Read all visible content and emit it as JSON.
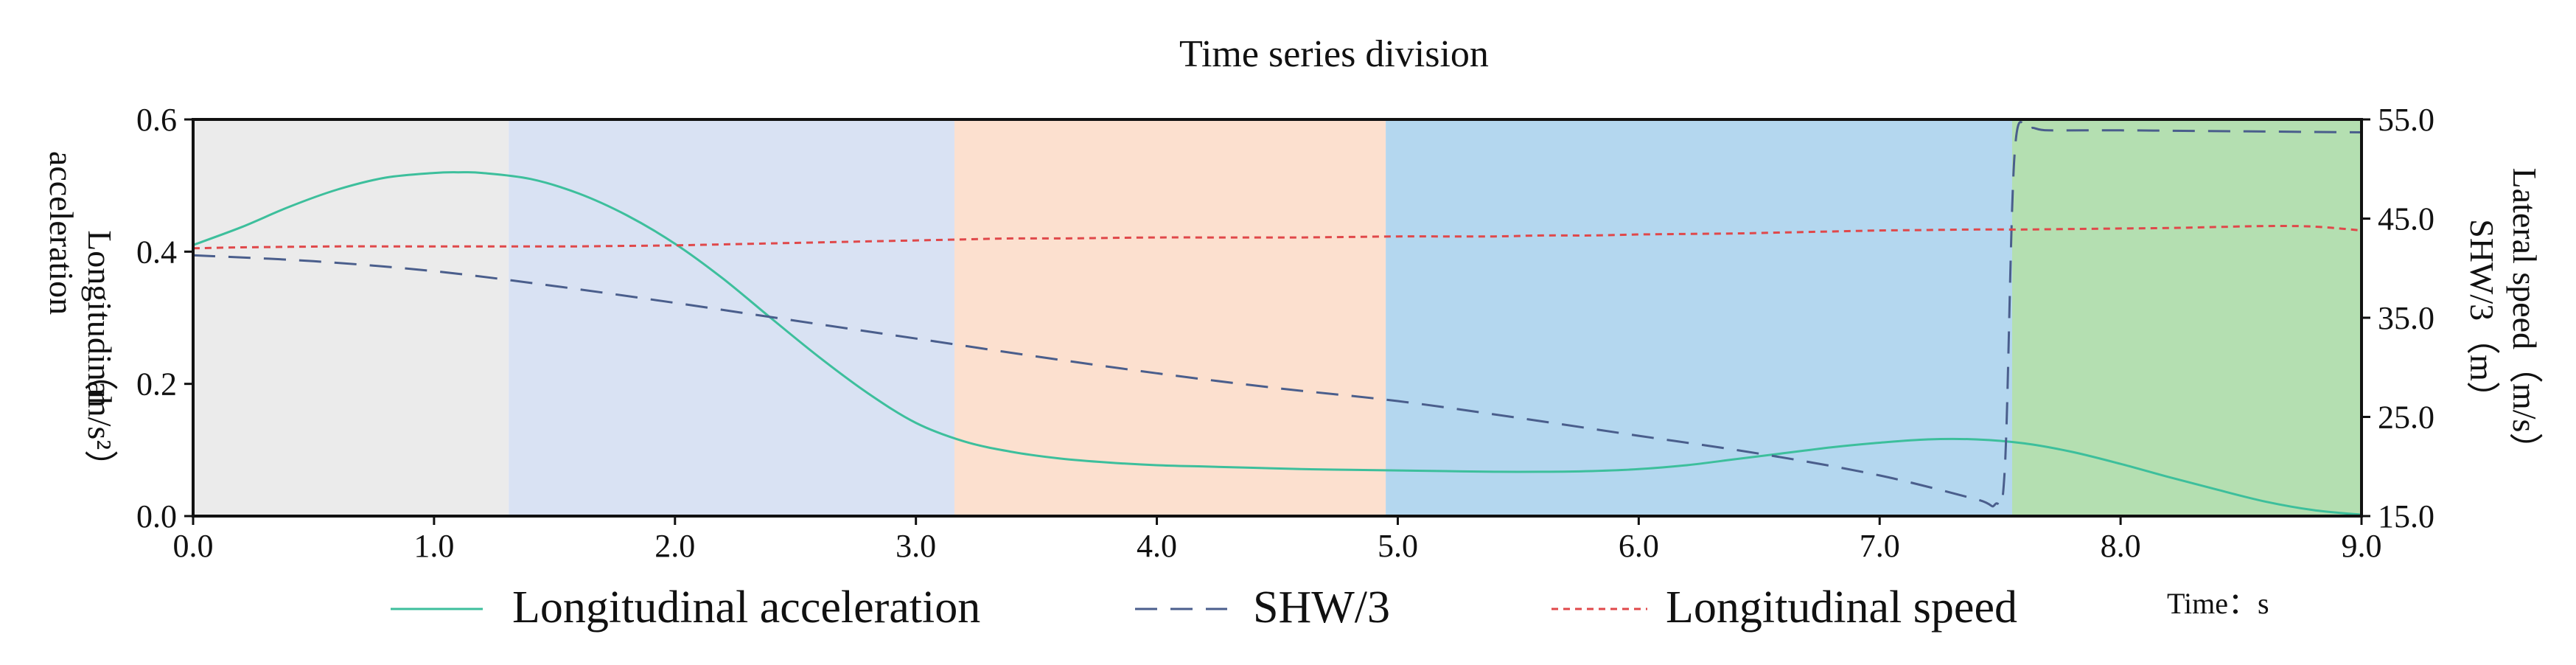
{
  "chart_data": {
    "type": "line",
    "title": "Time series division",
    "x": [
      0.0,
      0.2,
      0.4,
      0.6,
      0.8,
      1.0,
      1.1,
      1.2,
      1.4,
      1.6,
      1.8,
      2.0,
      2.2,
      2.4,
      2.6,
      2.8,
      3.0,
      3.2,
      3.4,
      3.6,
      3.8,
      4.0,
      4.2,
      4.4,
      4.6,
      4.8,
      5.0,
      5.2,
      5.4,
      5.6,
      5.8,
      6.0,
      6.2,
      6.4,
      6.6,
      6.8,
      7.0,
      7.2,
      7.4,
      7.6,
      7.8,
      8.0,
      8.2,
      8.4,
      8.6,
      8.8,
      9.0
    ],
    "xlim": [
      0.0,
      9.0
    ],
    "xticks": [
      "0.0",
      "1.0",
      "2.0",
      "3.0",
      "4.0",
      "5.0",
      "6.0",
      "7.0",
      "8.0",
      "9.0"
    ],
    "xlabel": "Time：s",
    "left_axis": {
      "ylabel_line1": "Longitudinal",
      "ylabel_line2": "acceleration",
      "ylabel_unit": "（m/s²）",
      "ylim": [
        0.0,
        0.6
      ],
      "ticks": [
        "0.0",
        "0.2",
        "0.4",
        "0.6"
      ]
    },
    "right_axis": {
      "ylabel_line1": "Lateral speed（m/s）",
      "ylabel_line2": "SHW/3（m）",
      "ylim": [
        15.0,
        55.0
      ],
      "ticks": [
        "15.0",
        "25.0",
        "35.0",
        "45.0",
        "55.0"
      ]
    },
    "regions": [
      {
        "start": 0.0,
        "end": 1.31,
        "color": "#ebebeb"
      },
      {
        "start": 1.31,
        "end": 3.16,
        "color": "#d9e2f3"
      },
      {
        "start": 3.16,
        "end": 4.95,
        "color": "#fce0cf"
      },
      {
        "start": 4.95,
        "end": 7.55,
        "color": "#b4d7ef"
      },
      {
        "start": 7.55,
        "end": 9.0,
        "color": "#b4dfb1"
      }
    ],
    "series": [
      {
        "name": "Longitudinal acceleration",
        "axis": "left",
        "color": "#3dbf9c",
        "style": "solid",
        "values": [
          0.41,
          0.437,
          0.468,
          0.494,
          0.512,
          0.519,
          0.52,
          0.519,
          0.51,
          0.488,
          0.455,
          0.412,
          0.359,
          0.299,
          0.24,
          0.186,
          0.141,
          0.113,
          0.097,
          0.087,
          0.081,
          0.077,
          0.075,
          0.073,
          0.071,
          0.07,
          0.069,
          0.068,
          0.067,
          0.067,
          0.068,
          0.071,
          0.077,
          0.086,
          0.095,
          0.104,
          0.111,
          0.116,
          0.116,
          0.11,
          0.097,
          0.079,
          0.059,
          0.04,
          0.022,
          0.009,
          0.002
        ]
      },
      {
        "name": "SHW/3",
        "axis": "right",
        "color": "#4a5e8c",
        "style": "dashed",
        "x": [
          0.0,
          0.5,
          1.0,
          1.5,
          2.0,
          2.5,
          3.0,
          3.5,
          4.0,
          4.5,
          5.0,
          5.5,
          6.0,
          6.5,
          7.0,
          7.4,
          7.48,
          7.52,
          7.56,
          7.62,
          7.7,
          8.0,
          8.5,
          9.0
        ],
        "values": [
          41.3,
          40.7,
          39.7,
          38.2,
          36.5,
          34.7,
          32.9,
          31.1,
          29.4,
          27.9,
          26.6,
          24.9,
          23.1,
          21.3,
          19.1,
          16.7,
          16.2,
          20.0,
          51.5,
          54.0,
          53.9,
          53.9,
          53.8,
          53.7
        ]
      },
      {
        "name": "Longitudinal speed",
        "axis": "right",
        "color": "#e0484a",
        "style": "dashed",
        "values": [
          42.0,
          42.1,
          42.15,
          42.2,
          42.2,
          42.2,
          42.2,
          42.2,
          42.2,
          42.2,
          42.25,
          42.3,
          42.4,
          42.5,
          42.6,
          42.7,
          42.8,
          42.9,
          43.0,
          43.0,
          43.05,
          43.1,
          43.1,
          43.1,
          43.1,
          43.15,
          43.2,
          43.2,
          43.2,
          43.3,
          43.3,
          43.4,
          43.45,
          43.5,
          43.6,
          43.7,
          43.8,
          43.85,
          43.9,
          43.9,
          43.95,
          44.0,
          44.05,
          44.15,
          44.25,
          44.2,
          43.8
        ]
      }
    ],
    "legend_position": "bottom"
  }
}
